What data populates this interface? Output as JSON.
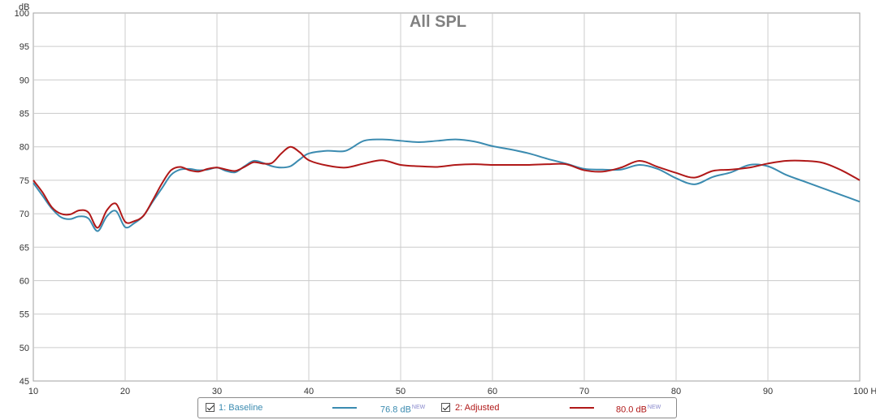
{
  "chart_data": {
    "type": "line",
    "title": "All SPL",
    "ylabel": "dB",
    "xunit": "Hz",
    "xlim": [
      10,
      100
    ],
    "ylim": [
      45,
      100
    ],
    "xticks": [
      10,
      20,
      30,
      40,
      50,
      60,
      70,
      80,
      90,
      100
    ],
    "xtick_labels": [
      "10",
      "20",
      "30",
      "40",
      "50",
      "60",
      "70",
      "80",
      "90",
      "100 Hz"
    ],
    "yticks": [
      45,
      50,
      55,
      60,
      65,
      70,
      75,
      80,
      85,
      90,
      95,
      100
    ],
    "grid": true,
    "legend_position": "bottom",
    "series": [
      {
        "name": "1: Baseline",
        "color": "#3b8bb0",
        "x": [
          10,
          11,
          12,
          13,
          14,
          15,
          16,
          17,
          18,
          19,
          20,
          21,
          22,
          23,
          24,
          25,
          26,
          27,
          28,
          29,
          30,
          31,
          32,
          33,
          34,
          35,
          36,
          37,
          38,
          39,
          40,
          42,
          44,
          46,
          48,
          50,
          52,
          54,
          56,
          58,
          60,
          62,
          64,
          66,
          68,
          70,
          72,
          74,
          76,
          78,
          80,
          82,
          84,
          86,
          88,
          90,
          92,
          94,
          96,
          98,
          100
        ],
        "values": [
          74.6,
          72.7,
          70.8,
          69.5,
          69.2,
          69.6,
          69.3,
          67.4,
          69.6,
          70.4,
          68.0,
          68.6,
          69.7,
          71.8,
          73.8,
          75.8,
          76.6,
          76.7,
          76.5,
          76.6,
          76.9,
          76.4,
          76.2,
          77.1,
          77.9,
          77.6,
          77.1,
          76.9,
          77.1,
          78.1,
          79.0,
          79.4,
          79.4,
          80.9,
          81.1,
          80.9,
          80.7,
          80.9,
          81.1,
          80.8,
          80.1,
          79.6,
          79.0,
          78.2,
          77.5,
          76.7,
          76.6,
          76.6,
          77.3,
          76.7,
          75.3,
          74.4,
          75.5,
          76.2,
          77.3,
          77.1,
          75.8,
          74.8,
          73.8,
          72.8,
          71.8
        ]
      },
      {
        "name": "2: Adjusted",
        "color": "#b01818",
        "x": [
          10,
          11,
          12,
          13,
          14,
          15,
          16,
          17,
          18,
          19,
          20,
          21,
          22,
          23,
          24,
          25,
          26,
          27,
          28,
          29,
          30,
          31,
          32,
          33,
          34,
          35,
          36,
          37,
          38,
          39,
          40,
          42,
          44,
          46,
          48,
          50,
          52,
          54,
          56,
          58,
          60,
          62,
          64,
          66,
          68,
          70,
          72,
          74,
          76,
          78,
          80,
          82,
          84,
          86,
          88,
          90,
          92,
          94,
          96,
          98,
          100
        ],
        "values": [
          75.0,
          73.2,
          71.0,
          70.0,
          69.9,
          70.5,
          70.2,
          67.9,
          70.5,
          71.5,
          68.8,
          68.9,
          69.7,
          72.0,
          74.5,
          76.5,
          77.0,
          76.5,
          76.3,
          76.7,
          76.9,
          76.6,
          76.4,
          77.0,
          77.7,
          77.5,
          77.6,
          79.0,
          80.0,
          79.2,
          78.0,
          77.2,
          76.9,
          77.5,
          78.0,
          77.3,
          77.1,
          77.0,
          77.3,
          77.4,
          77.3,
          77.3,
          77.3,
          77.4,
          77.4,
          76.5,
          76.3,
          76.9,
          77.9,
          77.0,
          76.1,
          75.4,
          76.4,
          76.6,
          76.9,
          77.5,
          77.9,
          77.9,
          77.6,
          76.5,
          75.0
        ]
      }
    ]
  },
  "legend": {
    "items": [
      {
        "label": "1: Baseline",
        "value": "76.8 dB",
        "badge": "NEW",
        "color": "#3b8bb0",
        "checked": true
      },
      {
        "label": "2: Adjusted",
        "value": "80.0 dB",
        "badge": "NEW",
        "color": "#b01818",
        "checked": true
      }
    ]
  }
}
